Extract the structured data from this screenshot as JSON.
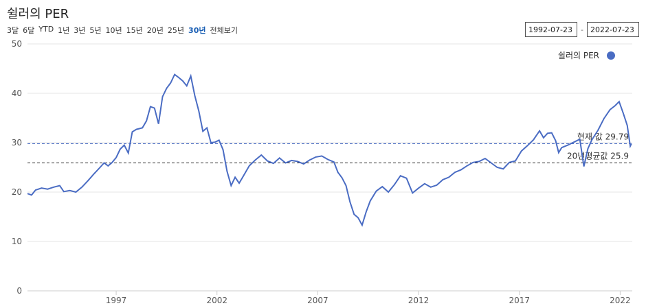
{
  "header": {
    "title": "쉴러의 PER",
    "ranges": [
      "3달",
      "6달",
      "YTD",
      "1년",
      "3년",
      "5년",
      "10년",
      "15년",
      "20년",
      "25년",
      "30년",
      "전체보기"
    ],
    "active_range": "30년",
    "date_from": "1992-07-23",
    "date_to": "2022-07-23",
    "date_sep": "-"
  },
  "chart_data": {
    "type": "line",
    "title": "",
    "xlabel": "",
    "ylabel": "",
    "ylim": [
      0,
      50
    ],
    "y_ticks": [
      0,
      10,
      20,
      30,
      40,
      50
    ],
    "xlim": [
      1992.6,
      2022.6
    ],
    "x_ticks": [
      "1997",
      "2002",
      "2007",
      "2012",
      "2017",
      "2022"
    ],
    "legend": {
      "label": "쉴러의 PER",
      "position": "top-right"
    },
    "grid": true,
    "line_color": "#4a6cc3",
    "series": [
      {
        "name": "쉴러의 PER",
        "points": [
          [
            1992.6,
            19.7
          ],
          [
            1992.8,
            19.4
          ],
          [
            1993.0,
            20.4
          ],
          [
            1993.3,
            20.8
          ],
          [
            1993.6,
            20.6
          ],
          [
            1993.9,
            21.0
          ],
          [
            1994.2,
            21.3
          ],
          [
            1994.4,
            20.1
          ],
          [
            1994.7,
            20.3
          ],
          [
            1995.0,
            20.0
          ],
          [
            1995.3,
            21.0
          ],
          [
            1995.6,
            22.3
          ],
          [
            1995.9,
            23.7
          ],
          [
            1996.2,
            25.0
          ],
          [
            1996.4,
            25.9
          ],
          [
            1996.6,
            25.3
          ],
          [
            1996.8,
            26.0
          ],
          [
            1997.0,
            27.0
          ],
          [
            1997.2,
            28.7
          ],
          [
            1997.4,
            29.5
          ],
          [
            1997.6,
            27.9
          ],
          [
            1997.8,
            32.2
          ],
          [
            1998.0,
            32.7
          ],
          [
            1998.3,
            33.0
          ],
          [
            1998.5,
            34.4
          ],
          [
            1998.7,
            37.3
          ],
          [
            1998.9,
            37.0
          ],
          [
            1999.1,
            33.8
          ],
          [
            1999.3,
            39.3
          ],
          [
            1999.5,
            41.0
          ],
          [
            1999.7,
            42.1
          ],
          [
            1999.9,
            43.8
          ],
          [
            2000.1,
            43.2
          ],
          [
            2000.3,
            42.5
          ],
          [
            2000.5,
            41.5
          ],
          [
            2000.7,
            43.5
          ],
          [
            2000.9,
            39.5
          ],
          [
            2001.1,
            36.4
          ],
          [
            2001.3,
            32.3
          ],
          [
            2001.5,
            33.0
          ],
          [
            2001.7,
            30.0
          ],
          [
            2001.9,
            30.1
          ],
          [
            2002.1,
            30.5
          ],
          [
            2002.3,
            28.6
          ],
          [
            2002.5,
            24.2
          ],
          [
            2002.7,
            21.3
          ],
          [
            2002.9,
            23.0
          ],
          [
            2003.1,
            21.8
          ],
          [
            2003.3,
            23.2
          ],
          [
            2003.6,
            25.3
          ],
          [
            2003.9,
            26.5
          ],
          [
            2004.2,
            27.5
          ],
          [
            2004.5,
            26.3
          ],
          [
            2004.8,
            25.8
          ],
          [
            2005.1,
            26.9
          ],
          [
            2005.4,
            25.9
          ],
          [
            2005.7,
            26.4
          ],
          [
            2006.0,
            26.2
          ],
          [
            2006.3,
            25.7
          ],
          [
            2006.6,
            26.5
          ],
          [
            2006.9,
            27.1
          ],
          [
            2007.2,
            27.3
          ],
          [
            2007.5,
            26.6
          ],
          [
            2007.8,
            26.1
          ],
          [
            2008.0,
            24.0
          ],
          [
            2008.2,
            22.9
          ],
          [
            2008.4,
            21.3
          ],
          [
            2008.6,
            18.0
          ],
          [
            2008.8,
            15.5
          ],
          [
            2009.0,
            14.8
          ],
          [
            2009.2,
            13.3
          ],
          [
            2009.4,
            16.0
          ],
          [
            2009.6,
            18.2
          ],
          [
            2009.9,
            20.2
          ],
          [
            2010.2,
            21.1
          ],
          [
            2010.5,
            20.0
          ],
          [
            2010.8,
            21.5
          ],
          [
            2011.1,
            23.3
          ],
          [
            2011.4,
            22.8
          ],
          [
            2011.7,
            19.8
          ],
          [
            2012.0,
            20.8
          ],
          [
            2012.3,
            21.7
          ],
          [
            2012.6,
            21.0
          ],
          [
            2012.9,
            21.4
          ],
          [
            2013.2,
            22.5
          ],
          [
            2013.5,
            23.0
          ],
          [
            2013.8,
            24.0
          ],
          [
            2014.1,
            24.5
          ],
          [
            2014.4,
            25.3
          ],
          [
            2014.7,
            26.0
          ],
          [
            2015.0,
            26.2
          ],
          [
            2015.3,
            26.8
          ],
          [
            2015.6,
            25.9
          ],
          [
            2015.9,
            25.0
          ],
          [
            2016.2,
            24.7
          ],
          [
            2016.5,
            26.0
          ],
          [
            2016.8,
            26.3
          ],
          [
            2017.1,
            28.3
          ],
          [
            2017.4,
            29.4
          ],
          [
            2017.7,
            30.6
          ],
          [
            2018.0,
            32.4
          ],
          [
            2018.2,
            31.0
          ],
          [
            2018.4,
            31.9
          ],
          [
            2018.6,
            32.0
          ],
          [
            2018.8,
            30.4
          ],
          [
            2018.95,
            28.0
          ],
          [
            2019.1,
            29.0
          ],
          [
            2019.4,
            29.5
          ],
          [
            2019.7,
            30.1
          ],
          [
            2020.0,
            30.7
          ],
          [
            2020.2,
            25.2
          ],
          [
            2020.4,
            28.8
          ],
          [
            2020.6,
            30.6
          ],
          [
            2020.9,
            32.5
          ],
          [
            2021.2,
            34.9
          ],
          [
            2021.5,
            36.7
          ],
          [
            2021.75,
            37.5
          ],
          [
            2021.95,
            38.3
          ],
          [
            2022.15,
            36.0
          ],
          [
            2022.35,
            33.5
          ],
          [
            2022.5,
            29.3
          ],
          [
            2022.56,
            29.8
          ]
        ]
      }
    ],
    "reference_lines": [
      {
        "label": "현재 값 29.79",
        "value": 29.79,
        "color": "#4a6cc3",
        "style": "dashed"
      },
      {
        "label": "20년평균값 25.9",
        "value": 25.9,
        "color": "#222222",
        "style": "dashed"
      }
    ]
  }
}
